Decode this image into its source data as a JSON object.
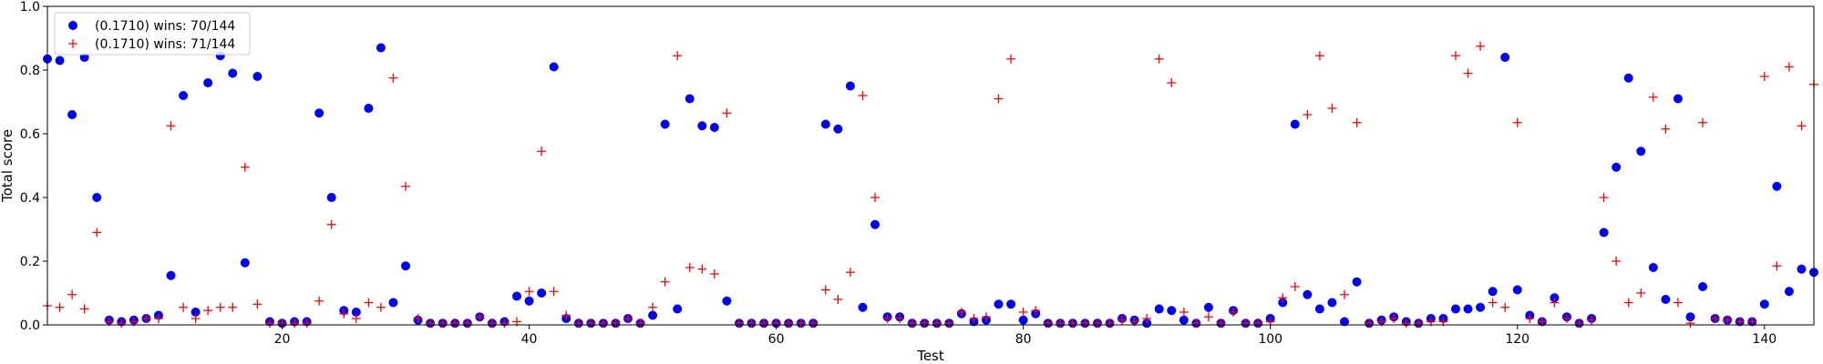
{
  "chart_data": {
    "type": "scatter",
    "xlabel": "Test",
    "ylabel": "Total score",
    "xlim": [
      1,
      144
    ],
    "ylim": [
      0,
      1.0
    ],
    "xticks": [
      20,
      40,
      60,
      80,
      100,
      120,
      140
    ],
    "yticks": [
      0.0,
      0.2,
      0.4,
      0.6,
      0.8,
      1.0
    ],
    "xtick_labels": [
      "20",
      "40",
      "60",
      "80",
      "100",
      "120",
      "140"
    ],
    "ytick_labels": [
      "0.0",
      "0.2",
      "0.4",
      "0.6",
      "0.8",
      "1.0"
    ],
    "grid": false,
    "legend_position": "top-left",
    "series": [
      {
        "name": "(0.1710) wins: 70/144",
        "marker": "circle",
        "color": "#0000ff",
        "x": [
          1,
          2,
          3,
          4,
          5,
          6,
          7,
          8,
          9,
          10,
          11,
          12,
          13,
          14,
          15,
          16,
          17,
          18,
          19,
          20,
          21,
          22,
          23,
          24,
          25,
          26,
          27,
          28,
          29,
          30,
          31,
          32,
          33,
          34,
          35,
          36,
          37,
          38,
          39,
          40,
          41,
          42,
          43,
          44,
          45,
          46,
          47,
          48,
          49,
          50,
          51,
          52,
          53,
          54,
          55,
          56,
          57,
          58,
          59,
          60,
          61,
          62,
          63,
          64,
          65,
          66,
          67,
          68,
          69,
          70,
          71,
          72,
          73,
          74,
          75,
          76,
          77,
          78,
          79,
          80,
          81,
          82,
          83,
          84,
          85,
          86,
          87,
          88,
          89,
          90,
          91,
          92,
          93,
          94,
          95,
          96,
          97,
          98,
          99,
          100,
          101,
          102,
          103,
          104,
          105,
          106,
          107,
          108,
          109,
          110,
          111,
          112,
          113,
          114,
          115,
          116,
          117,
          118,
          119,
          120,
          121,
          122,
          123,
          124,
          125,
          126,
          127,
          128,
          129,
          130,
          131,
          132,
          133,
          134,
          135,
          136,
          137,
          138,
          139,
          140,
          141,
          142,
          143,
          144
        ],
        "y": [
          0.835,
          0.83,
          0.66,
          0.84,
          0.4,
          0.015,
          0.01,
          0.015,
          0.02,
          0.03,
          0.155,
          0.72,
          0.04,
          0.76,
          0.845,
          0.79,
          0.195,
          0.78,
          0.01,
          0.005,
          0.01,
          0.01,
          0.665,
          0.4,
          0.045,
          0.04,
          0.68,
          0.87,
          0.07,
          0.185,
          0.015,
          0.005,
          0.005,
          0.005,
          0.005,
          0.025,
          0.005,
          0.01,
          0.09,
          0.075,
          0.1,
          0.81,
          0.02,
          0.005,
          0.005,
          0.005,
          0.005,
          0.02,
          0.005,
          0.03,
          0.63,
          0.05,
          0.71,
          0.625,
          0.62,
          0.075,
          0.005,
          0.005,
          0.005,
          0.005,
          0.005,
          0.005,
          0.005,
          0.63,
          0.615,
          0.75,
          0.055,
          0.315,
          0.025,
          0.025,
          0.005,
          0.005,
          0.005,
          0.005,
          0.035,
          0.01,
          0.015,
          0.065,
          0.065,
          0.015,
          0.035,
          0.005,
          0.005,
          0.005,
          0.005,
          0.005,
          0.005,
          0.02,
          0.015,
          0.005,
          0.05,
          0.045,
          0.015,
          0.005,
          0.055,
          0.005,
          0.045,
          0.005,
          0.005,
          0.02,
          0.07,
          0.63,
          0.095,
          0.05,
          0.07,
          0.01,
          0.135,
          0.005,
          0.015,
          0.025,
          0.01,
          0.005,
          0.02,
          0.02,
          0.05,
          0.05,
          0.055,
          0.105,
          0.84,
          0.11,
          0.03,
          0.01,
          0.085,
          0.025,
          0.005,
          0.02,
          0.29,
          0.495,
          0.775,
          0.545,
          0.18,
          0.08,
          0.71,
          0.025,
          0.12,
          0.02,
          0.015,
          0.01,
          0.01,
          0.065,
          0.435,
          0.105,
          0.175,
          0.165
        ]
      },
      {
        "name": "(0.1710) wins: 71/144",
        "marker": "plus",
        "color": "#ff0000",
        "x": [
          1,
          2,
          3,
          4,
          5,
          6,
          7,
          8,
          9,
          10,
          11,
          12,
          13,
          14,
          15,
          16,
          17,
          18,
          19,
          20,
          21,
          22,
          23,
          24,
          25,
          26,
          27,
          28,
          29,
          30,
          31,
          32,
          33,
          34,
          35,
          36,
          37,
          38,
          39,
          40,
          41,
          42,
          43,
          44,
          45,
          46,
          47,
          48,
          49,
          50,
          51,
          52,
          53,
          54,
          55,
          56,
          57,
          58,
          59,
          60,
          61,
          62,
          63,
          64,
          65,
          66,
          67,
          68,
          69,
          70,
          71,
          72,
          73,
          74,
          75,
          76,
          77,
          78,
          79,
          80,
          81,
          82,
          83,
          84,
          85,
          86,
          87,
          88,
          89,
          90,
          91,
          92,
          93,
          94,
          95,
          96,
          97,
          98,
          99,
          100,
          101,
          102,
          103,
          104,
          105,
          106,
          107,
          108,
          109,
          110,
          111,
          112,
          113,
          114,
          115,
          116,
          117,
          118,
          119,
          120,
          121,
          122,
          123,
          124,
          125,
          126,
          127,
          128,
          129,
          130,
          131,
          132,
          133,
          134,
          135,
          136,
          137,
          138,
          139,
          140,
          141,
          142,
          143,
          144
        ],
        "y": [
          0.06,
          0.055,
          0.095,
          0.05,
          0.29,
          0.01,
          0.005,
          0.01,
          0.02,
          0.02,
          0.625,
          0.055,
          0.02,
          0.045,
          0.055,
          0.055,
          0.495,
          0.065,
          0.005,
          0.005,
          0.005,
          0.005,
          0.075,
          0.315,
          0.035,
          0.02,
          0.07,
          0.055,
          0.775,
          0.435,
          0.02,
          0.005,
          0.005,
          0.005,
          0.005,
          0.025,
          0.005,
          0.005,
          0.01,
          0.105,
          0.545,
          0.105,
          0.03,
          0.005,
          0.005,
          0.005,
          0.005,
          0.02,
          0.005,
          0.055,
          0.135,
          0.845,
          0.18,
          0.175,
          0.16,
          0.665,
          0.005,
          0.005,
          0.005,
          0.005,
          0.005,
          0.005,
          0.005,
          0.11,
          0.08,
          0.165,
          0.72,
          0.4,
          0.02,
          0.02,
          0.005,
          0.005,
          0.005,
          0.005,
          0.04,
          0.02,
          0.025,
          0.71,
          0.835,
          0.04,
          0.045,
          0.005,
          0.005,
          0.005,
          0.005,
          0.005,
          0.005,
          0.015,
          0.01,
          0.02,
          0.835,
          0.76,
          0.04,
          0.005,
          0.025,
          0.005,
          0.04,
          0.005,
          0.005,
          0.01,
          0.085,
          0.12,
          0.66,
          0.845,
          0.68,
          0.095,
          0.635,
          0.005,
          0.01,
          0.02,
          0.005,
          0.005,
          0.01,
          0.01,
          0.845,
          0.79,
          0.875,
          0.07,
          0.055,
          0.635,
          0.02,
          0.01,
          0.07,
          0.02,
          0.005,
          0.015,
          0.4,
          0.2,
          0.07,
          0.1,
          0.715,
          0.615,
          0.07,
          0.005,
          0.635,
          0.02,
          0.015,
          0.01,
          0.01,
          0.78,
          0.185,
          0.81,
          0.625,
          0.755
        ]
      }
    ]
  }
}
